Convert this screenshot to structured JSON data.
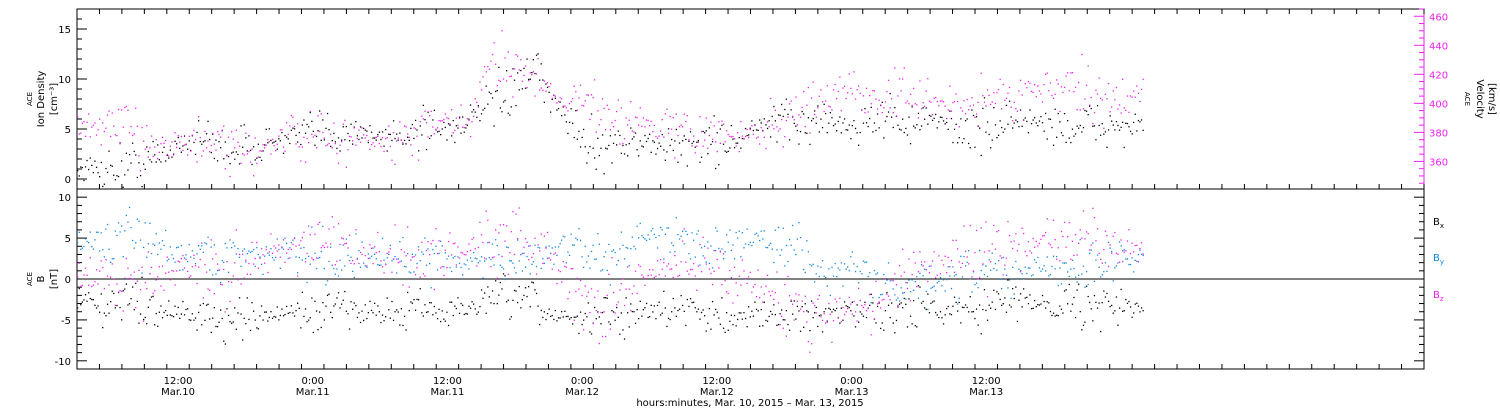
{
  "chart_data": [
    {
      "type": "scatter",
      "panel": "top",
      "left_axis_label_lines": [
        "ACE",
        "Ion Density",
        "[cm⁻³]"
      ],
      "right_axis_label_lines": [
        "ACE",
        "Velocity",
        "[km/s]"
      ],
      "left_ylim": [
        -1,
        17
      ],
      "left_yticks": [
        0,
        5,
        10,
        15
      ],
      "right_ylim": [
        341,
        465
      ],
      "right_yticks": [
        360,
        380,
        400,
        420,
        440,
        460
      ],
      "series": [
        {
          "name": "",
          "axis": "left",
          "color": "#000000",
          "keypoints": [
            [
              -9,
              1.0
            ],
            [
              -6,
              1.2
            ],
            [
              -3,
              1.8
            ],
            [
              -1,
              2.5
            ],
            [
              0,
              3.8
            ],
            [
              2,
              4.0
            ],
            [
              4,
              3.2
            ],
            [
              6,
              3.0
            ],
            [
              8,
              3.8
            ],
            [
              10,
              4.0
            ],
            [
              12,
              4.5
            ],
            [
              14,
              4.8
            ],
            [
              16,
              5.0
            ],
            [
              18,
              4.0
            ],
            [
              20,
              4.5
            ],
            [
              22,
              5.5
            ],
            [
              24,
              5.0
            ],
            [
              26,
              6.0
            ],
            [
              28,
              7.5
            ],
            [
              30,
              9.0
            ],
            [
              32,
              11.0
            ],
            [
              33,
              8.0
            ],
            [
              35,
              6.0
            ],
            [
              36,
              3.5
            ],
            [
              38,
              3.5
            ],
            [
              40,
              3.8
            ],
            [
              42,
              3.5
            ],
            [
              44,
              3.2
            ],
            [
              46,
              3.8
            ],
            [
              48,
              3.8
            ],
            [
              50,
              4.0
            ],
            [
              52,
              5.5
            ],
            [
              54,
              5.5
            ],
            [
              56,
              5.8
            ],
            [
              58,
              6.0
            ],
            [
              60,
              5.0
            ],
            [
              62,
              6.5
            ],
            [
              64,
              6.0
            ],
            [
              66,
              5.5
            ],
            [
              68,
              6.0
            ],
            [
              70,
              4.8
            ],
            [
              72,
              5.0
            ],
            [
              74,
              6.0
            ],
            [
              76,
              5.8
            ],
            [
              78,
              5.5
            ],
            [
              80,
              5.0
            ],
            [
              82,
              5.5
            ],
            [
              84,
              5.2
            ],
            [
              86,
              5.5
            ]
          ]
        },
        {
          "name": "",
          "axis": "right",
          "color": "#ee22ee",
          "keypoints": [
            [
              -9,
              382
            ],
            [
              -7,
              384
            ],
            [
              -4,
              380
            ],
            [
              -1,
              372
            ],
            [
              2,
              373
            ],
            [
              4,
              368
            ],
            [
              6,
              365
            ],
            [
              8,
              372
            ],
            [
              10,
              378
            ],
            [
              12,
              377
            ],
            [
              14,
              372
            ],
            [
              16,
              378
            ],
            [
              18,
              372
            ],
            [
              20,
              374
            ],
            [
              22,
              383
            ],
            [
              24,
              385
            ],
            [
              26,
              388
            ],
            [
              28,
              430
            ],
            [
              30,
              428
            ],
            [
              32,
              416
            ],
            [
              34,
              405
            ],
            [
              36,
              400
            ],
            [
              38,
              396
            ],
            [
              40,
              388
            ],
            [
              42,
              385
            ],
            [
              44,
              382
            ],
            [
              46,
              380
            ],
            [
              48,
              378
            ],
            [
              50,
              377
            ],
            [
              52,
              382
            ],
            [
              54,
              390
            ],
            [
              56,
              398
            ],
            [
              58,
              404
            ],
            [
              60,
              410
            ],
            [
              62,
              404
            ],
            [
              64,
              406
            ],
            [
              66,
              402
            ],
            [
              68,
              400
            ],
            [
              70,
              398
            ],
            [
              72,
              404
            ],
            [
              74,
              404
            ],
            [
              76,
              410
            ],
            [
              78,
              412
            ],
            [
              80,
              408
            ],
            [
              82,
              402
            ],
            [
              84,
              402
            ],
            [
              86,
              410
            ]
          ]
        }
      ]
    },
    {
      "type": "scatter",
      "panel": "bottom",
      "left_axis_label_lines": [
        "ACE",
        "B",
        "[nT]"
      ],
      "ylim": [
        -11,
        11
      ],
      "yticks": [
        -10,
        -5,
        0,
        5,
        10
      ],
      "series": [
        {
          "name": "Bx",
          "name_main": "B",
          "name_sub": "x",
          "color": "#000000",
          "keypoints": [
            [
              -9,
              -2.5
            ],
            [
              -6,
              -2.8
            ],
            [
              -3,
              -3.0
            ],
            [
              0,
              -3.8
            ],
            [
              2,
              -4.5
            ],
            [
              4,
              -5.0
            ],
            [
              6,
              -5.2
            ],
            [
              8,
              -4.5
            ],
            [
              10,
              -4.0
            ],
            [
              12,
              -4.2
            ],
            [
              14,
              -3.5
            ],
            [
              16,
              -3.5
            ],
            [
              18,
              -4.0
            ],
            [
              20,
              -4.0
            ],
            [
              22,
              -3.5
            ],
            [
              24,
              -4.5
            ],
            [
              26,
              -3.0
            ],
            [
              28,
              -3.0
            ],
            [
              30,
              -2.0
            ],
            [
              32,
              -3.5
            ],
            [
              34,
              -4.5
            ],
            [
              36,
              -5.0
            ],
            [
              38,
              -4.0
            ],
            [
              40,
              -4.5
            ],
            [
              42,
              -4.0
            ],
            [
              44,
              -3.5
            ],
            [
              46,
              -3.8
            ],
            [
              48,
              -4.5
            ],
            [
              50,
              -4.2
            ],
            [
              52,
              -4.5
            ],
            [
              54,
              -4.8
            ],
            [
              56,
              -4.0
            ],
            [
              58,
              -4.2
            ],
            [
              60,
              -4.0
            ],
            [
              62,
              -3.5
            ],
            [
              64,
              -3.8
            ],
            [
              66,
              -3.5
            ],
            [
              68,
              -3.8
            ],
            [
              70,
              -3.0
            ],
            [
              72,
              -3.5
            ],
            [
              74,
              -2.8
            ],
            [
              76,
              -2.5
            ],
            [
              78,
              -2.8
            ],
            [
              80,
              -3.0
            ],
            [
              82,
              -3.0
            ],
            [
              84,
              -3.5
            ],
            [
              86,
              -3.5
            ]
          ]
        },
        {
          "name": "By",
          "name_main": "B",
          "name_sub": "y",
          "color": "#1188dd",
          "keypoints": [
            [
              -9,
              4.5
            ],
            [
              -6,
              4.8
            ],
            [
              -3,
              5.0
            ],
            [
              0,
              3.0
            ],
            [
              2,
              3.5
            ],
            [
              4,
              2.5
            ],
            [
              6,
              3.5
            ],
            [
              8,
              3.0
            ],
            [
              10,
              3.5
            ],
            [
              12,
              3.0
            ],
            [
              14,
              2.5
            ],
            [
              16,
              3.0
            ],
            [
              18,
              2.5
            ],
            [
              20,
              2.0
            ],
            [
              22,
              3.5
            ],
            [
              24,
              2.5
            ],
            [
              26,
              2.0
            ],
            [
              28,
              3.0
            ],
            [
              30,
              1.5
            ],
            [
              32,
              3.0
            ],
            [
              34,
              4.0
            ],
            [
              36,
              3.5
            ],
            [
              38,
              3.0
            ],
            [
              40,
              4.0
            ],
            [
              42,
              5.0
            ],
            [
              44,
              5.5
            ],
            [
              46,
              5.0
            ],
            [
              48,
              4.5
            ],
            [
              50,
              4.0
            ],
            [
              52,
              5.0
            ],
            [
              54,
              4.5
            ],
            [
              56,
              3.0
            ],
            [
              58,
              0.5
            ],
            [
              60,
              1.5
            ],
            [
              62,
              0.0
            ],
            [
              64,
              -1.5
            ],
            [
              66,
              -1.0
            ],
            [
              68,
              -0.5
            ],
            [
              70,
              0.5
            ],
            [
              72,
              1.0
            ],
            [
              74,
              0.5
            ],
            [
              76,
              1.0
            ],
            [
              78,
              1.5
            ],
            [
              80,
              1.5
            ],
            [
              82,
              2.0
            ],
            [
              84,
              2.5
            ],
            [
              86,
              3.0
            ]
          ]
        },
        {
          "name": "Bz",
          "name_main": "B",
          "name_sub": "z",
          "color": "#ee22ee",
          "keypoints": [
            [
              -9,
              0.5
            ],
            [
              -6,
              0.0
            ],
            [
              -3,
              -0.5
            ],
            [
              0,
              2.0
            ],
            [
              2,
              1.5
            ],
            [
              4,
              1.0
            ],
            [
              6,
              2.5
            ],
            [
              8,
              3.0
            ],
            [
              10,
              4.0
            ],
            [
              12,
              3.5
            ],
            [
              14,
              4.0
            ],
            [
              16,
              3.0
            ],
            [
              18,
              3.0
            ],
            [
              20,
              2.5
            ],
            [
              22,
              2.5
            ],
            [
              24,
              3.0
            ],
            [
              26,
              4.0
            ],
            [
              28,
              5.0
            ],
            [
              30,
              6.0
            ],
            [
              32,
              4.0
            ],
            [
              34,
              0.5
            ],
            [
              36,
              -2.5
            ],
            [
              38,
              -3.5
            ],
            [
              40,
              -1.5
            ],
            [
              42,
              0.5
            ],
            [
              44,
              2.0
            ],
            [
              46,
              2.5
            ],
            [
              48,
              1.0
            ],
            [
              50,
              0.5
            ],
            [
              52,
              -1.0
            ],
            [
              54,
              -3.0
            ],
            [
              56,
              -4.0
            ],
            [
              58,
              -4.5
            ],
            [
              60,
              -3.0
            ],
            [
              62,
              -3.5
            ],
            [
              64,
              0.0
            ],
            [
              66,
              1.5
            ],
            [
              68,
              2.5
            ],
            [
              70,
              3.0
            ],
            [
              72,
              3.5
            ],
            [
              74,
              4.0
            ],
            [
              76,
              4.5
            ],
            [
              78,
              4.5
            ],
            [
              80,
              4.8
            ],
            [
              82,
              4.5
            ],
            [
              84,
              4.0
            ],
            [
              86,
              3.5
            ]
          ]
        }
      ]
    }
  ],
  "x_axis": {
    "range_hours": [
      -9,
      111
    ],
    "data_end_hour": 86,
    "ticks": [
      {
        "hour": 0,
        "time": "12:00",
        "date": "Mar.10"
      },
      {
        "hour": 12,
        "time": "0:00",
        "date": "Mar.11"
      },
      {
        "hour": 24,
        "time": "12:00",
        "date": "Mar.11"
      },
      {
        "hour": 36,
        "time": "0:00",
        "date": "Mar.12"
      },
      {
        "hour": 48,
        "time": "12:00",
        "date": "Mar.12"
      },
      {
        "hour": 60,
        "time": "0:00",
        "date": "Mar.13"
      },
      {
        "hour": 72,
        "time": "12:00",
        "date": "Mar.13"
      }
    ],
    "title": "hours:minutes, Mar. 10, 2015 – Mar. 13, 2015"
  }
}
